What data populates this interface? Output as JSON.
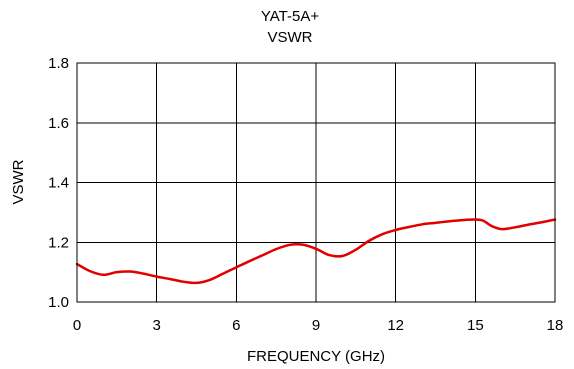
{
  "chart_data": {
    "type": "line",
    "title": "YAT-5A+",
    "subtitle": "VSWR",
    "xlabel": "FREQUENCY (GHz)",
    "ylabel": "VSWR",
    "xlim": [
      0,
      18
    ],
    "ylim": [
      1.0,
      1.8
    ],
    "x_ticks": [
      "0",
      "3",
      "6",
      "9",
      "12",
      "15",
      "18"
    ],
    "y_ticks": [
      "1.0",
      "1.2",
      "1.4",
      "1.6",
      "1.8"
    ],
    "grid": true,
    "series": [
      {
        "color": "#e00000",
        "x": [
          0,
          0.5,
          1.0,
          1.5,
          2.0,
          2.5,
          3.0,
          3.5,
          4.0,
          4.5,
          5.0,
          5.5,
          6.0,
          6.5,
          7.0,
          7.5,
          8.0,
          8.5,
          9.0,
          9.5,
          10.0,
          10.5,
          11.0,
          11.5,
          12.0,
          12.5,
          13.0,
          13.5,
          14.0,
          14.5,
          15.0,
          15.3,
          15.6,
          16.0,
          16.5,
          17.0,
          17.5,
          18.0
        ],
        "y": [
          1.127,
          1.103,
          1.091,
          1.1,
          1.102,
          1.095,
          1.085,
          1.077,
          1.068,
          1.064,
          1.074,
          1.095,
          1.116,
          1.137,
          1.157,
          1.177,
          1.191,
          1.192,
          1.178,
          1.157,
          1.154,
          1.175,
          1.205,
          1.227,
          1.241,
          1.251,
          1.26,
          1.265,
          1.27,
          1.274,
          1.276,
          1.272,
          1.255,
          1.244,
          1.25,
          1.259,
          1.267,
          1.276
        ]
      }
    ]
  }
}
